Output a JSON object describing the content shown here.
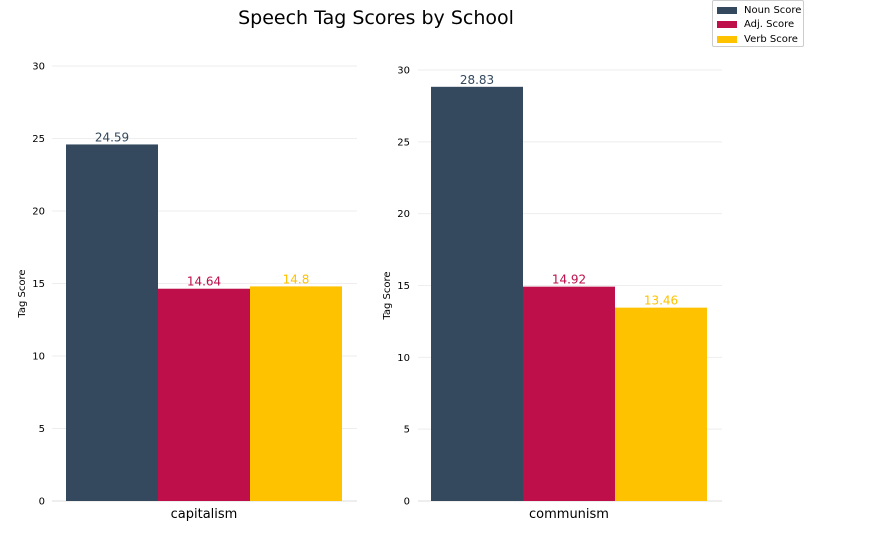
{
  "chart_data": {
    "type": "bar",
    "title": "Speech Tag Scores by School",
    "ylabel": "Tag Score",
    "ylim": [
      0,
      30
    ],
    "yticks": [
      0,
      5,
      10,
      15,
      20,
      25,
      30
    ],
    "grid": true,
    "legend_placement": "top-right",
    "series": [
      {
        "name": "Noun Score",
        "color": "#34495e"
      },
      {
        "name": "Adj. Score",
        "color": "#be0f4a"
      },
      {
        "name": "Verb Score",
        "color": "#ffc200"
      }
    ],
    "panels": [
      {
        "category": "capitalism",
        "values": [
          24.59,
          14.64,
          14.8
        ],
        "labels": [
          "24.59",
          "14.64",
          "14.8"
        ]
      },
      {
        "category": "communism",
        "values": [
          28.83,
          14.92,
          13.46
        ],
        "labels": [
          "28.83",
          "14.92",
          "13.46"
        ]
      }
    ]
  }
}
